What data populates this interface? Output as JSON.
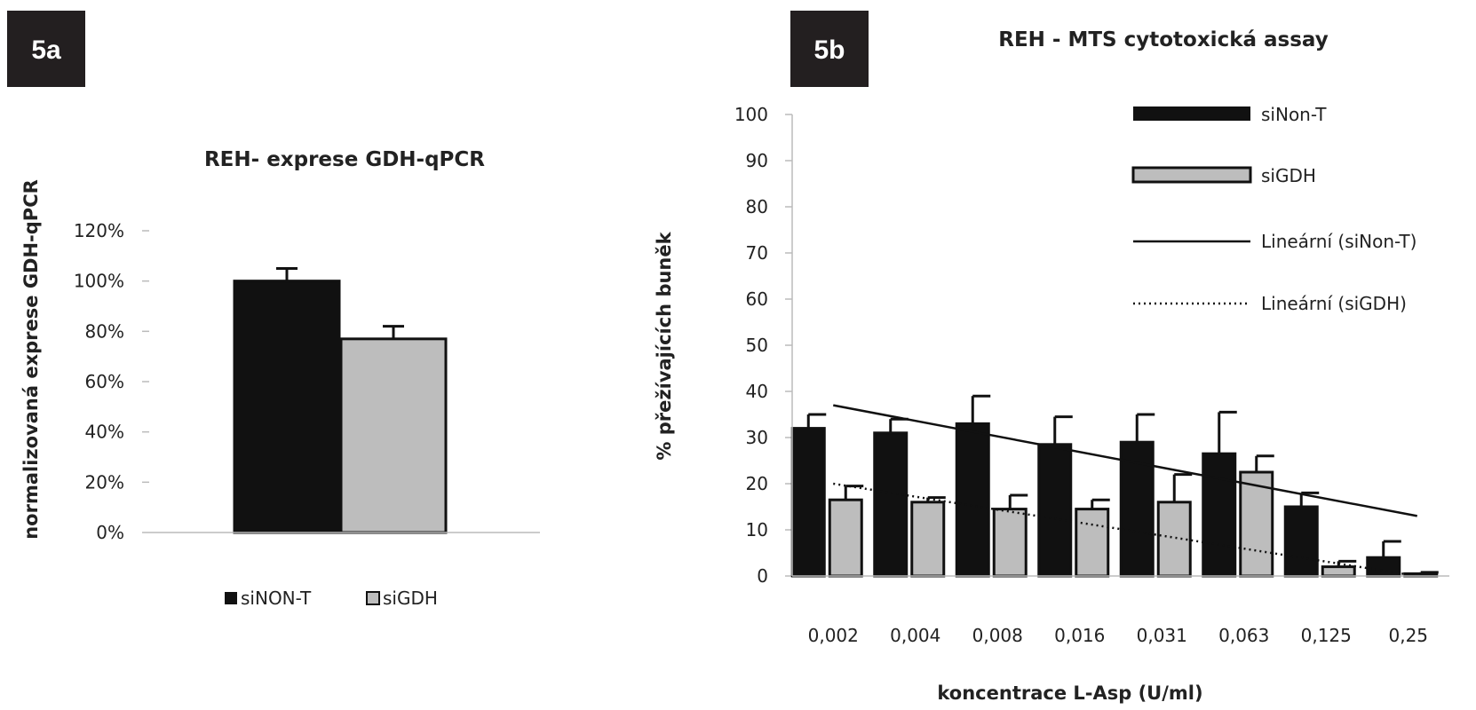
{
  "chart_data": [
    {
      "panel": "5a",
      "type": "bar",
      "title": "REH- exprese GDH-qPCR",
      "xlabel": "",
      "ylabel": "normalizovaná exprese GDH-qPCR",
      "ylim": [
        0,
        1.2
      ],
      "yticks": [
        0,
        0.2,
        0.4,
        0.6,
        0.8,
        1.0,
        1.2
      ],
      "ytick_labels": [
        "0%",
        "20%",
        "40%",
        "60%",
        "80%",
        "100%",
        "120%"
      ],
      "series": [
        {
          "name": "siNON-T",
          "values": [
            1.0
          ],
          "errors": [
            0.05
          ],
          "color": "#111111"
        },
        {
          "name": "siGDH",
          "values": [
            0.77
          ],
          "errors": [
            0.05
          ],
          "color": "#bdbdbd"
        }
      ],
      "legend_position": "bottom",
      "grid": false
    },
    {
      "panel": "5b",
      "type": "bar",
      "title": "REH - MTS cytotoxická assay",
      "xlabel": "koncentrace L-Asp (U/ml)",
      "ylabel": "% přežívajících buněk",
      "ylim": [
        0,
        100
      ],
      "yticks": [
        0,
        10,
        20,
        30,
        40,
        50,
        60,
        70,
        80,
        90,
        100
      ],
      "categories": [
        "0,002",
        "0,004",
        "0,008",
        "0,016",
        "0,031",
        "0,063",
        "0,125",
        "0,25"
      ],
      "series": [
        {
          "name": "siNon-T",
          "values": [
            32,
            31,
            33,
            28.5,
            29,
            26.5,
            15,
            4
          ],
          "errors": [
            3,
            3,
            6,
            6,
            6,
            9,
            3,
            3.5
          ],
          "color": "#111111"
        },
        {
          "name": "siGDH",
          "values": [
            16.5,
            16,
            14.5,
            14.5,
            16,
            22.5,
            2,
            0.5
          ],
          "errors": [
            3,
            1,
            3,
            2,
            6,
            3.5,
            1.2,
            0.3
          ],
          "color": "#bdbdbd"
        }
      ],
      "trendlines": [
        {
          "name": "Lineární (siNon-T)",
          "style": "solid",
          "start": 37,
          "end": 13
        },
        {
          "name": "Lineární (siGDH)",
          "style": "dotted",
          "start": 20,
          "end": 0
        }
      ],
      "legend_position": "top-right",
      "grid": false
    }
  ]
}
